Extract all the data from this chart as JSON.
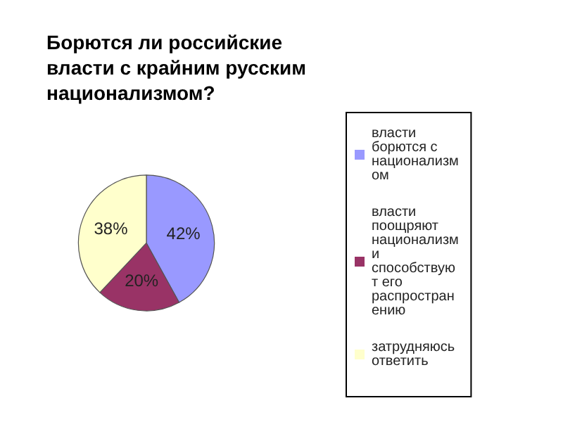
{
  "chart_data": {
    "type": "pie",
    "title": "Борются ли российские власти с крайним русским национализмом?",
    "categories": [
      "власти борются с национализмом",
      "власти поощряют национализм и способствуют его распространению",
      "затрудняюсь ответить"
    ],
    "values": [
      42,
      20,
      38
    ],
    "colors": [
      "#9999ff",
      "#993366",
      "#ffffcc"
    ],
    "value_labels": [
      "42%",
      "20%",
      "38%"
    ],
    "legend": "right"
  }
}
